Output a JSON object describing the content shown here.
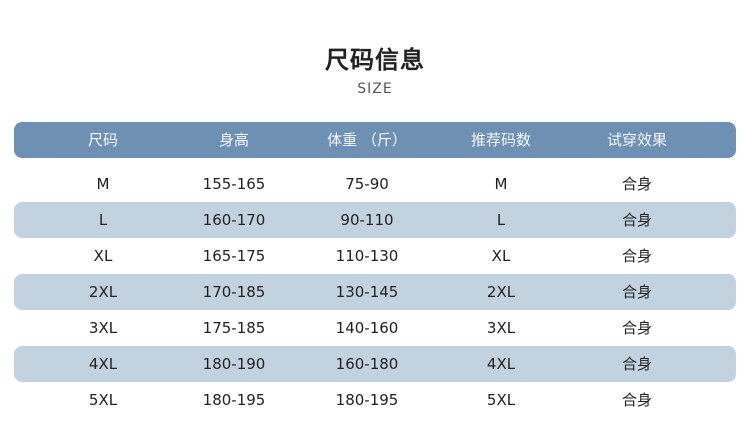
{
  "title": "尺码信息",
  "subtitle": "SIZE",
  "colors": {
    "header": "#6d90b3",
    "stripe": "#c3d2df"
  },
  "headers": [
    "尺码",
    "身高",
    "体重 （斤）",
    "推荐码数",
    "试穿效果"
  ],
  "rows": [
    [
      "M",
      "155-165",
      "75-90",
      "M",
      "合身"
    ],
    [
      "L",
      "160-170",
      "90-110",
      "L",
      "合身"
    ],
    [
      "XL",
      "165-175",
      "110-130",
      "XL",
      "合身"
    ],
    [
      "2XL",
      "170-185",
      "130-145",
      "2XL",
      "合身"
    ],
    [
      "3XL",
      "175-185",
      "140-160",
      "3XL",
      "合身"
    ],
    [
      "4XL",
      "180-190",
      "160-180",
      "4XL",
      "合身"
    ],
    [
      "5XL",
      "180-195",
      "180-195",
      "5XL",
      "合身"
    ]
  ]
}
